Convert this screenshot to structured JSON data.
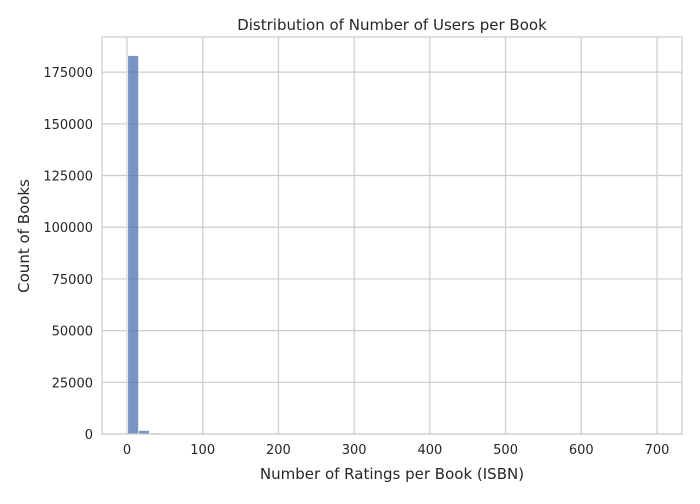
{
  "chart_data": {
    "type": "bar",
    "title": "Distribution of Number of Users per Book",
    "xlabel": "Number of Ratings per Book (ISBN)",
    "ylabel": "Count of Books",
    "xlim": [
      -33,
      733
    ],
    "ylim": [
      0,
      192000
    ],
    "xticks": [
      0,
      100,
      200,
      300,
      400,
      500,
      600,
      700
    ],
    "yticks": [
      0,
      25000,
      50000,
      75000,
      100000,
      125000,
      150000,
      175000
    ],
    "bin_width": 14.26,
    "bins": [
      {
        "start": 1,
        "end": 15.26,
        "count": 183000
      },
      {
        "start": 15.26,
        "end": 29.52,
        "count": 1700
      },
      {
        "start": 29.52,
        "end": 43.78,
        "count": 480
      },
      {
        "start": 43.78,
        "end": 58.04,
        "count": 200
      },
      {
        "start": 58.04,
        "end": 72.3,
        "count": 100
      },
      {
        "start": 72.3,
        "end": 86.56,
        "count": 60
      },
      {
        "start": 86.56,
        "end": 100.82,
        "count": 40
      }
    ],
    "bar_color": "#4c72b0",
    "grid": true
  }
}
